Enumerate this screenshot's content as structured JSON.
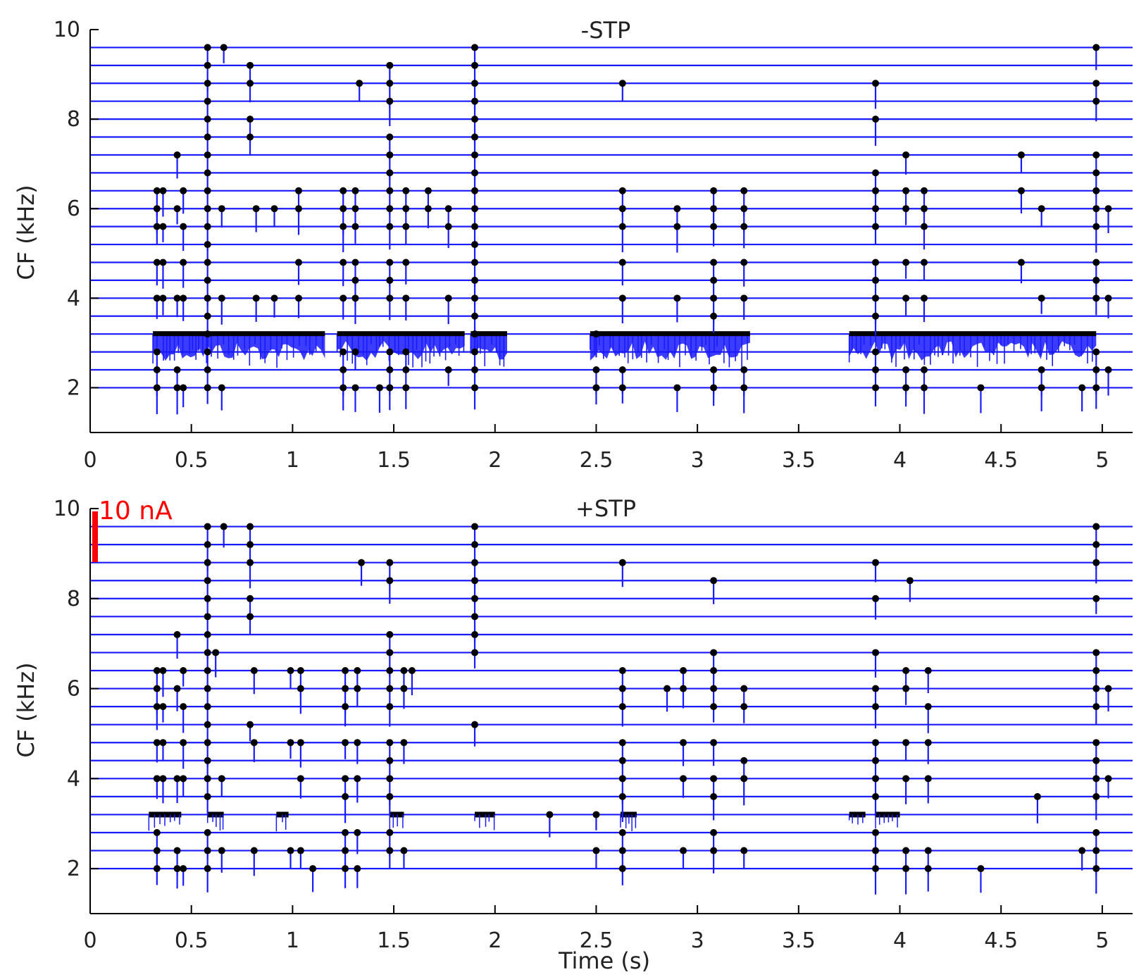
{
  "chart_data": [
    {
      "type": "raster",
      "title": "-STP",
      "xlabel": "",
      "ylabel": "CF (kHz)",
      "xlim": [
        0,
        5.15
      ],
      "ylim": [
        1,
        10
      ],
      "xticks": [
        "0",
        "0.5",
        "1",
        "1.5",
        "2",
        "2.5",
        "3",
        "3.5",
        "4",
        "4.5",
        "5"
      ],
      "yticks": [
        "2",
        "4",
        "6",
        "8",
        "10"
      ],
      "colors": {
        "trace": "#1a1aff",
        "spike": "#000000",
        "axis": "#000000"
      },
      "grid": false,
      "legend": "none",
      "channel_cf_khz": [
        2.0,
        2.4,
        2.8,
        3.2,
        3.6,
        4.0,
        4.4,
        4.8,
        5.2,
        5.6,
        6.0,
        6.4,
        6.8,
        7.2,
        7.6,
        8.0,
        8.4,
        8.8,
        9.2,
        9.6
      ],
      "dense_bursts": [
        {
          "start": 0.31,
          "end": 1.16,
          "cf": 3.2
        },
        {
          "start": 1.22,
          "end": 1.85,
          "cf": 3.2
        },
        {
          "start": 1.88,
          "end": 2.06,
          "cf": 3.2
        },
        {
          "start": 2.47,
          "end": 3.26,
          "cf": 3.2
        },
        {
          "start": 3.75,
          "end": 4.97,
          "cf": 3.2
        }
      ],
      "spikes": [
        {
          "t": 0.58,
          "cf": [
            9.6,
            9.2,
            8.8,
            8.4,
            8.0,
            7.6,
            7.2,
            6.8,
            6.4,
            6.0,
            5.6,
            5.2,
            4.8,
            4.4,
            4.0,
            3.6,
            3.2,
            2.8,
            2.4,
            2.0
          ]
        },
        {
          "t": 1.9,
          "cf": [
            9.6,
            9.2,
            8.8,
            8.4,
            8.0,
            7.6,
            7.2,
            6.8,
            6.4,
            6.0,
            5.6,
            5.2,
            4.8,
            4.4,
            4.0,
            3.6,
            3.2,
            2.8,
            2.4,
            2.0
          ]
        },
        {
          "t": 0.66,
          "cf": [
            9.6
          ]
        },
        {
          "t": 0.79,
          "cf": [
            9.2,
            8.8,
            8.0,
            7.6
          ]
        },
        {
          "t": 1.33,
          "cf": [
            8.8
          ]
        },
        {
          "t": 1.48,
          "cf": [
            9.2,
            8.8,
            8.4,
            7.6,
            7.2,
            6.8,
            6.4,
            6.0,
            5.6,
            4.8,
            4.4,
            4.0,
            2.8,
            2.4,
            2.0
          ]
        },
        {
          "t": 2.63,
          "cf": [
            8.8,
            6.4,
            6.0,
            5.6,
            4.8,
            4.0,
            2.4,
            2.0
          ]
        },
        {
          "t": 3.88,
          "cf": [
            8.8,
            8.0,
            6.8,
            6.4,
            6.0,
            5.6,
            4.8,
            4.4,
            4.0,
            3.6,
            2.8,
            2.4,
            2.0
          ]
        },
        {
          "t": 4.97,
          "cf": [
            9.6,
            8.8,
            8.4,
            7.2,
            6.8,
            6.4,
            6.0,
            5.6,
            4.8,
            4.4,
            4.0,
            2.8,
            2.4,
            2.0
          ]
        },
        {
          "t": 0.43,
          "cf": [
            7.2,
            6.0,
            4.0,
            2.4,
            2.0
          ]
        },
        {
          "t": 0.33,
          "cf": [
            6.4,
            6.0,
            5.6,
            4.8,
            4.0,
            2.8,
            2.4,
            2.0
          ]
        },
        {
          "t": 0.36,
          "cf": [
            6.4,
            5.6,
            4.8,
            4.0
          ]
        },
        {
          "t": 0.46,
          "cf": [
            6.4,
            5.6,
            4.8,
            4.0,
            2.0
          ]
        },
        {
          "t": 0.65,
          "cf": [
            6.0,
            4.0,
            2.0
          ]
        },
        {
          "t": 0.82,
          "cf": [
            6.0,
            4.0
          ]
        },
        {
          "t": 0.91,
          "cf": [
            6.0,
            4.0
          ]
        },
        {
          "t": 1.03,
          "cf": [
            6.4,
            6.0,
            4.8,
            4.0
          ]
        },
        {
          "t": 1.25,
          "cf": [
            6.4,
            6.0,
            5.6,
            4.8,
            4.0,
            2.8,
            2.4,
            2.0
          ]
        },
        {
          "t": 1.31,
          "cf": [
            6.4,
            6.0,
            5.6,
            4.8,
            4.4,
            4.0,
            2.8,
            2.0
          ]
        },
        {
          "t": 1.56,
          "cf": [
            6.4,
            6.0,
            5.6,
            4.8,
            4.0,
            2.8,
            2.4,
            2.0
          ]
        },
        {
          "t": 1.67,
          "cf": [
            6.4,
            6.0
          ]
        },
        {
          "t": 1.77,
          "cf": [
            6.0,
            5.6,
            4.0,
            2.4
          ]
        },
        {
          "t": 2.5,
          "cf": [
            3.2,
            2.4,
            2.0
          ]
        },
        {
          "t": 2.9,
          "cf": [
            6.0,
            5.6,
            4.0,
            2.0
          ]
        },
        {
          "t": 3.08,
          "cf": [
            6.4,
            6.0,
            5.6,
            4.8,
            4.4,
            4.0,
            3.6,
            2.4,
            2.0
          ]
        },
        {
          "t": 3.23,
          "cf": [
            6.4,
            6.0,
            5.6,
            4.8,
            4.0,
            2.4,
            2.0
          ]
        },
        {
          "t": 4.03,
          "cf": [
            7.2,
            6.4,
            6.0,
            4.8,
            4.0,
            2.4,
            2.0
          ]
        },
        {
          "t": 4.12,
          "cf": [
            6.4,
            6.0,
            5.6,
            4.8,
            4.0,
            2.4,
            2.0
          ]
        },
        {
          "t": 4.6,
          "cf": [
            7.2,
            6.4,
            4.8
          ]
        },
        {
          "t": 4.7,
          "cf": [
            6.0,
            4.0,
            2.4,
            2.0
          ]
        },
        {
          "t": 5.03,
          "cf": [
            6.0,
            4.0,
            2.4
          ]
        },
        {
          "t": 1.43,
          "cf": [
            2.0
          ]
        },
        {
          "t": 4.4,
          "cf": [
            2.0
          ]
        },
        {
          "t": 4.9,
          "cf": [
            2.0
          ]
        }
      ]
    },
    {
      "type": "raster",
      "title": "+STP",
      "xlabel": "Time (s)",
      "ylabel": "CF (kHz)",
      "xlim": [
        0,
        5.15
      ],
      "ylim": [
        1,
        10
      ],
      "xticks": [
        "0",
        "0.5",
        "1",
        "1.5",
        "2",
        "2.5",
        "3",
        "3.5",
        "4",
        "4.5",
        "5"
      ],
      "yticks": [
        "2",
        "4",
        "6",
        "8",
        "10"
      ],
      "scale_bar": {
        "label": "10 nA",
        "color": "#ff0000"
      },
      "colors": {
        "trace": "#1a1aff",
        "spike": "#000000",
        "axis": "#000000"
      },
      "grid": false,
      "legend": "none",
      "channel_cf_khz": [
        2.0,
        2.4,
        2.8,
        3.2,
        3.6,
        4.0,
        4.4,
        4.8,
        5.2,
        5.6,
        6.0,
        6.4,
        6.8,
        7.2,
        7.6,
        8.0,
        8.4,
        8.8,
        9.2,
        9.6
      ],
      "dense_bursts": [
        {
          "start": 0.29,
          "end": 0.45,
          "cf": 3.2
        },
        {
          "start": 0.58,
          "end": 0.66,
          "cf": 3.2
        },
        {
          "start": 0.92,
          "end": 0.98,
          "cf": 3.2
        },
        {
          "start": 1.48,
          "end": 1.55,
          "cf": 3.2
        },
        {
          "start": 1.9,
          "end": 2.0,
          "cf": 3.2
        },
        {
          "start": 2.62,
          "end": 2.7,
          "cf": 3.2
        },
        {
          "start": 3.75,
          "end": 3.83,
          "cf": 3.2
        },
        {
          "start": 3.88,
          "end": 4.0,
          "cf": 3.2
        }
      ],
      "spikes": [
        {
          "t": 0.58,
          "cf": [
            9.6,
            9.2,
            8.8,
            8.4,
            8.0,
            7.6,
            7.2,
            6.8,
            6.4,
            6.0,
            5.6,
            5.2,
            4.8,
            4.4,
            4.0,
            3.6,
            2.8,
            2.4,
            2.0
          ]
        },
        {
          "t": 1.9,
          "cf": [
            9.6,
            9.2,
            8.8,
            8.4,
            8.0,
            7.6,
            7.2,
            6.8,
            5.2
          ]
        },
        {
          "t": 0.66,
          "cf": [
            9.6
          ]
        },
        {
          "t": 0.79,
          "cf": [
            9.6,
            9.2,
            8.8,
            8.0,
            7.6,
            5.2
          ]
        },
        {
          "t": 1.34,
          "cf": [
            8.8
          ]
        },
        {
          "t": 1.48,
          "cf": [
            8.8,
            8.4,
            7.2,
            6.8,
            6.4,
            6.0,
            5.6,
            4.8,
            4.4,
            4.0,
            3.6,
            2.8,
            2.4
          ]
        },
        {
          "t": 2.63,
          "cf": [
            8.8,
            6.4,
            6.0,
            5.6,
            4.8,
            4.4,
            4.0,
            3.6,
            2.8,
            2.4,
            2.0
          ]
        },
        {
          "t": 3.08,
          "cf": [
            8.4,
            6.8,
            6.4,
            6.0,
            5.6,
            4.8,
            4.0,
            3.6,
            2.8,
            2.4
          ]
        },
        {
          "t": 3.88,
          "cf": [
            8.8,
            8.0,
            6.8,
            6.0,
            5.6,
            4.8,
            4.4,
            4.0,
            3.6,
            2.8,
            2.4,
            2.0
          ]
        },
        {
          "t": 4.05,
          "cf": [
            8.4
          ]
        },
        {
          "t": 4.97,
          "cf": [
            9.6,
            9.2,
            8.8,
            8.0,
            6.8,
            6.4,
            6.0,
            5.6,
            4.8,
            4.4,
            4.0,
            3.6,
            2.8,
            2.4,
            2.0
          ]
        },
        {
          "t": 0.43,
          "cf": [
            7.2,
            6.0,
            4.0,
            2.4,
            2.0
          ]
        },
        {
          "t": 0.62,
          "cf": [
            6.8
          ]
        },
        {
          "t": 0.33,
          "cf": [
            6.4,
            6.0,
            5.6,
            4.8,
            4.0,
            2.8,
            2.4,
            2.0
          ]
        },
        {
          "t": 0.36,
          "cf": [
            6.4,
            5.6,
            4.8,
            4.0
          ]
        },
        {
          "t": 0.46,
          "cf": [
            6.4,
            5.6,
            4.8,
            4.0,
            2.0
          ]
        },
        {
          "t": 0.65,
          "cf": [
            4.0,
            2.4
          ]
        },
        {
          "t": 0.81,
          "cf": [
            6.4,
            4.8,
            2.4
          ]
        },
        {
          "t": 0.99,
          "cf": [
            6.4,
            4.8,
            2.4
          ]
        },
        {
          "t": 1.04,
          "cf": [
            6.4,
            6.0,
            4.8,
            4.0,
            2.4
          ]
        },
        {
          "t": 1.26,
          "cf": [
            6.4,
            6.0,
            5.6,
            4.8,
            4.0,
            3.6,
            2.8,
            2.4,
            2.0
          ]
        },
        {
          "t": 1.32,
          "cf": [
            6.4,
            6.0,
            4.8,
            4.0,
            2.8,
            2.0
          ]
        },
        {
          "t": 1.55,
          "cf": [
            6.4,
            6.0,
            4.8,
            2.4
          ]
        },
        {
          "t": 1.59,
          "cf": [
            6.4
          ]
        },
        {
          "t": 2.5,
          "cf": [
            3.2,
            2.4
          ]
        },
        {
          "t": 2.85,
          "cf": [
            6.0
          ]
        },
        {
          "t": 2.93,
          "cf": [
            6.4,
            6.0,
            4.8,
            4.0,
            2.4
          ]
        },
        {
          "t": 3.23,
          "cf": [
            6.0,
            5.6,
            4.4,
            4.0,
            2.4
          ]
        },
        {
          "t": 4.03,
          "cf": [
            6.4,
            6.0,
            4.8,
            4.0,
            2.4,
            2.0
          ]
        },
        {
          "t": 4.14,
          "cf": [
            6.4,
            5.6,
            4.8,
            4.0,
            2.4,
            2.0
          ]
        },
        {
          "t": 4.68,
          "cf": [
            3.6
          ]
        },
        {
          "t": 5.03,
          "cf": [
            6.0,
            4.0
          ]
        },
        {
          "t": 4.9,
          "cf": [
            2.4
          ]
        },
        {
          "t": 4.4,
          "cf": [
            2.0
          ]
        },
        {
          "t": 1.1,
          "cf": [
            2.0
          ]
        },
        {
          "t": 2.27,
          "cf": [
            3.2
          ]
        }
      ]
    }
  ]
}
